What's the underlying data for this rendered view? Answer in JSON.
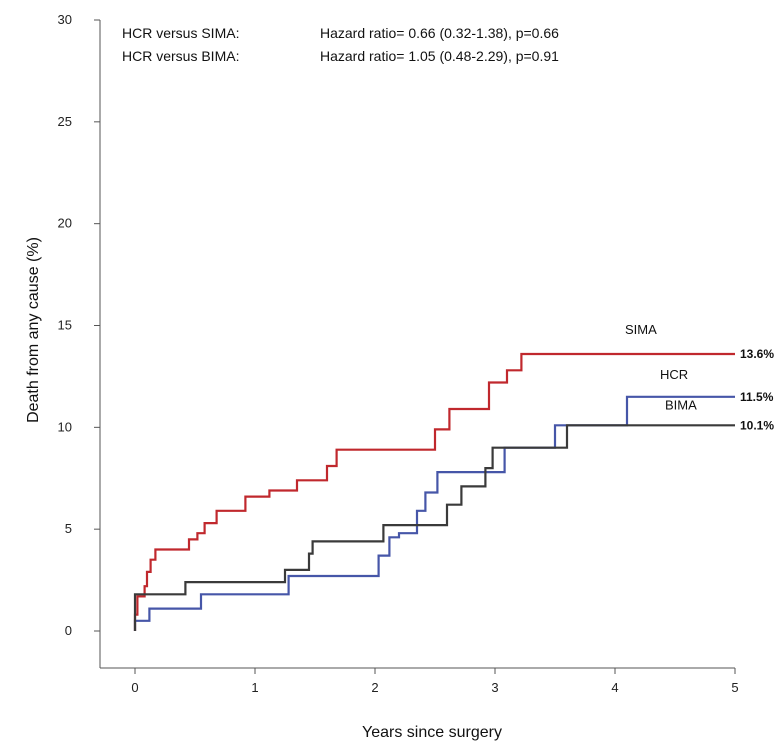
{
  "chart_data": {
    "type": "line",
    "subtype": "kaplan-meier-step",
    "xlabel": "Years since surgery",
    "ylabel": "Death from any cause (%)",
    "xlim": [
      0,
      5
    ],
    "ylim": [
      0,
      30
    ],
    "xticks": [
      "0",
      "1",
      "2",
      "3",
      "4",
      "5"
    ],
    "yticks": [
      "0",
      "5",
      "10",
      "15",
      "20",
      "25",
      "30"
    ],
    "grid": false,
    "legend": "inline labels at right end of curves",
    "annotations": [
      {
        "label": "HCR versus SIMA:",
        "text": "Hazard ratio= 0.66 (0.32-1.38), p=0.66"
      },
      {
        "label": "HCR versus BIMA:",
        "text": "Hazard ratio= 1.05 (0.48-2.29), p=0.91"
      }
    ],
    "series": [
      {
        "name": "SIMA",
        "end_label": "13.6%",
        "color": "#c0282d",
        "points": [
          [
            0,
            0
          ],
          [
            0,
            0.8
          ],
          [
            0.02,
            0.8
          ],
          [
            0.02,
            1.7
          ],
          [
            0.08,
            1.7
          ],
          [
            0.08,
            2.2
          ],
          [
            0.1,
            2.2
          ],
          [
            0.1,
            2.9
          ],
          [
            0.13,
            2.9
          ],
          [
            0.13,
            3.5
          ],
          [
            0.17,
            3.5
          ],
          [
            0.17,
            4.0
          ],
          [
            0.45,
            4.0
          ],
          [
            0.45,
            4.5
          ],
          [
            0.52,
            4.5
          ],
          [
            0.52,
            4.8
          ],
          [
            0.58,
            4.8
          ],
          [
            0.58,
            5.3
          ],
          [
            0.68,
            5.3
          ],
          [
            0.68,
            5.9
          ],
          [
            0.92,
            5.9
          ],
          [
            0.92,
            6.6
          ],
          [
            1.12,
            6.6
          ],
          [
            1.12,
            6.9
          ],
          [
            1.35,
            6.9
          ],
          [
            1.35,
            7.4
          ],
          [
            1.6,
            7.4
          ],
          [
            1.6,
            8.1
          ],
          [
            1.68,
            8.1
          ],
          [
            1.68,
            8.9
          ],
          [
            2.5,
            8.9
          ],
          [
            2.5,
            9.9
          ],
          [
            2.62,
            9.9
          ],
          [
            2.62,
            10.9
          ],
          [
            2.95,
            10.9
          ],
          [
            2.95,
            12.2
          ],
          [
            3.1,
            12.2
          ],
          [
            3.1,
            12.8
          ],
          [
            3.22,
            12.8
          ],
          [
            3.22,
            13.6
          ],
          [
            5,
            13.6
          ]
        ]
      },
      {
        "name": "HCR",
        "end_label": "11.5%",
        "color": "#4656a8",
        "points": [
          [
            0,
            0
          ],
          [
            0,
            0.5
          ],
          [
            0.12,
            0.5
          ],
          [
            0.12,
            1.1
          ],
          [
            0.55,
            1.1
          ],
          [
            0.55,
            1.8
          ],
          [
            1.28,
            1.8
          ],
          [
            1.28,
            2.7
          ],
          [
            2.03,
            2.7
          ],
          [
            2.03,
            3.7
          ],
          [
            2.12,
            3.7
          ],
          [
            2.12,
            4.6
          ],
          [
            2.2,
            4.6
          ],
          [
            2.2,
            4.8
          ],
          [
            2.35,
            4.8
          ],
          [
            2.35,
            5.9
          ],
          [
            2.42,
            5.9
          ],
          [
            2.42,
            6.8
          ],
          [
            2.52,
            6.8
          ],
          [
            2.52,
            7.8
          ],
          [
            3.08,
            7.8
          ],
          [
            3.08,
            9.0
          ],
          [
            3.5,
            9.0
          ],
          [
            3.5,
            10.1
          ],
          [
            4.1,
            10.1
          ],
          [
            4.1,
            11.5
          ],
          [
            5,
            11.5
          ]
        ]
      },
      {
        "name": "BIMA",
        "end_label": "10.1%",
        "color": "#3a3a3a",
        "points": [
          [
            0,
            0
          ],
          [
            0,
            1.8
          ],
          [
            0.42,
            1.8
          ],
          [
            0.42,
            2.4
          ],
          [
            1.25,
            2.4
          ],
          [
            1.25,
            3.0
          ],
          [
            1.45,
            3.0
          ],
          [
            1.45,
            3.8
          ],
          [
            1.48,
            3.8
          ],
          [
            1.48,
            4.4
          ],
          [
            2.07,
            4.4
          ],
          [
            2.07,
            5.2
          ],
          [
            2.6,
            5.2
          ],
          [
            2.6,
            6.2
          ],
          [
            2.72,
            6.2
          ],
          [
            2.72,
            7.1
          ],
          [
            2.92,
            7.1
          ],
          [
            2.92,
            8.0
          ],
          [
            2.98,
            8.0
          ],
          [
            2.98,
            9.0
          ],
          [
            3.6,
            9.0
          ],
          [
            3.6,
            10.1
          ],
          [
            5,
            10.1
          ]
        ]
      }
    ]
  }
}
